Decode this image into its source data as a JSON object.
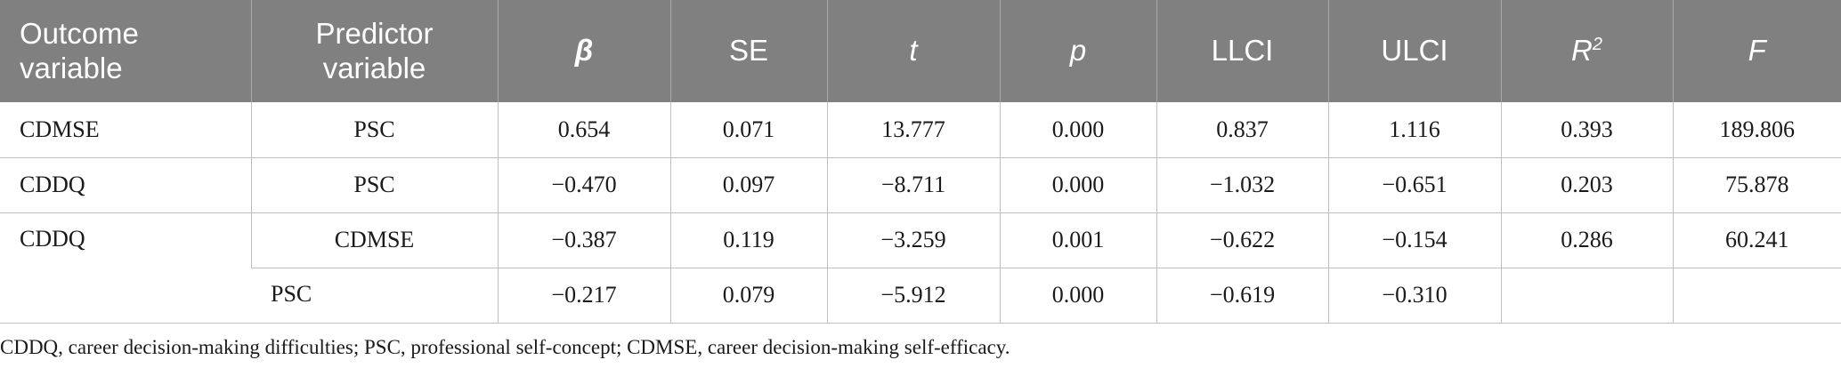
{
  "table": {
    "headers": {
      "outcome": "Outcome variable",
      "predictor": "Predictor variable",
      "beta": "β",
      "se": "SE",
      "t": "t",
      "p": "p",
      "llci": "LLCI",
      "ulci": "ULCI",
      "r2_base": "R",
      "r2_sup": "2",
      "f": "F"
    },
    "rows": [
      {
        "outcome": "CDMSE",
        "predictor": "PSC",
        "beta": "0.654",
        "se": "0.071",
        "t": "13.777",
        "p": "0.000",
        "llci": "0.837",
        "ulci": "1.116",
        "r2": "0.393",
        "f": "189.806"
      },
      {
        "outcome": "CDDQ",
        "predictor": "PSC",
        "beta": "−0.470",
        "se": "0.097",
        "t": "−8.711",
        "p": "0.000",
        "llci": "−1.032",
        "ulci": "−0.651",
        "r2": "0.203",
        "f": "75.878"
      },
      {
        "outcome": "CDDQ",
        "predictor": "CDMSE",
        "beta": "−0.387",
        "se": "0.119",
        "t": "−3.259",
        "p": "0.001",
        "llci": "−0.622",
        "ulci": "−0.154",
        "r2": "0.286",
        "f": "60.241"
      },
      {
        "predictor": "PSC",
        "beta": "−0.217",
        "se": "0.079",
        "t": "−5.912",
        "p": "0.000",
        "llci": "−0.619",
        "ulci": "−0.310"
      }
    ]
  },
  "note": "CDDQ, career decision-making difficulties; PSC, professional self-concept; CDMSE, career decision-making self-efficacy."
}
